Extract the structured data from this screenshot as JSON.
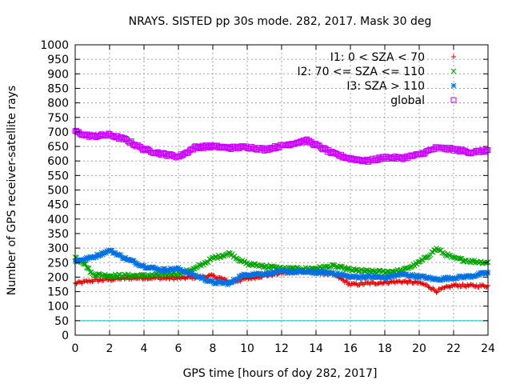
{
  "chart_data": {
    "type": "line",
    "title": "NRAYS. SISTED pp 30s mode. 282, 2017. Mask 30 deg",
    "xlabel": "GPS time [hours of doy 282, 2017]",
    "ylabel": "Number of GPS receiver-satellite rays",
    "xlim": [
      0,
      24
    ],
    "ylim": [
      0,
      1000
    ],
    "xticks": [
      0,
      2,
      4,
      6,
      8,
      10,
      12,
      14,
      16,
      18,
      20,
      22,
      24
    ],
    "yticks": [
      0,
      50,
      100,
      150,
      200,
      250,
      300,
      350,
      400,
      450,
      500,
      550,
      600,
      650,
      700,
      750,
      800,
      850,
      900,
      950,
      1000
    ],
    "grid": true,
    "legend_position": "top-right",
    "reference_line": {
      "y": 50,
      "color": "#00c0c0"
    },
    "series": [
      {
        "name": "I1: 0 < SZA < 70",
        "color": "#e00000",
        "marker": "plus",
        "x": [
          0,
          1,
          2,
          3,
          4,
          5,
          6,
          7,
          8,
          8.5,
          9,
          10,
          11,
          12,
          13,
          14,
          15,
          16,
          17,
          18,
          19,
          20,
          20.5,
          21,
          21.5,
          22,
          23,
          24
        ],
        "y": [
          178,
          188,
          192,
          196,
          198,
          197,
          196,
          200,
          204,
          195,
          182,
          195,
          205,
          214,
          220,
          218,
          210,
          174,
          178,
          182,
          185,
          180,
          170,
          152,
          162,
          172,
          170,
          170
        ]
      },
      {
        "name": "I2: 70 <= SZA <= 110",
        "color": "#00a000",
        "marker": "cross",
        "x": [
          0,
          0.5,
          1,
          2,
          3,
          4,
          5,
          6,
          7,
          8,
          9,
          9.5,
          10,
          11,
          12,
          13,
          14,
          15,
          16,
          17,
          18,
          19,
          20,
          20.5,
          21,
          21.5,
          22,
          23,
          24
        ],
        "y": [
          268,
          250,
          210,
          205,
          205,
          205,
          208,
          212,
          230,
          265,
          282,
          262,
          245,
          238,
          230,
          228,
          230,
          238,
          225,
          220,
          218,
          222,
          250,
          272,
          298,
          280,
          265,
          255,
          250
        ]
      },
      {
        "name": "I3: SZA > 110",
        "color": "#0070e0",
        "marker": "star",
        "x": [
          0,
          1,
          2,
          3,
          4,
          5,
          6,
          7,
          8,
          9,
          9.5,
          10,
          11,
          12,
          13,
          14,
          15,
          16,
          17,
          18,
          19,
          20,
          21,
          22,
          23,
          24
        ],
        "y": [
          255,
          268,
          292,
          262,
          238,
          225,
          228,
          205,
          182,
          178,
          200,
          210,
          212,
          218,
          218,
          216,
          214,
          200,
          202,
          198,
          210,
          202,
          192,
          198,
          203,
          215
        ]
      },
      {
        "name": "global",
        "color": "#cc00ff",
        "marker": "square",
        "x": [
          0,
          0.5,
          1,
          2,
          3,
          3.5,
          4,
          5,
          6,
          6.5,
          7,
          8,
          9,
          10,
          11,
          12,
          13,
          13.5,
          14,
          15,
          16,
          17,
          18,
          19,
          20,
          21,
          22,
          23,
          24
        ],
        "y": [
          702,
          690,
          685,
          690,
          672,
          655,
          640,
          625,
          615,
          630,
          648,
          650,
          645,
          648,
          640,
          652,
          665,
          670,
          655,
          625,
          608,
          600,
          612,
          610,
          622,
          645,
          640,
          630,
          636
        ]
      }
    ]
  }
}
